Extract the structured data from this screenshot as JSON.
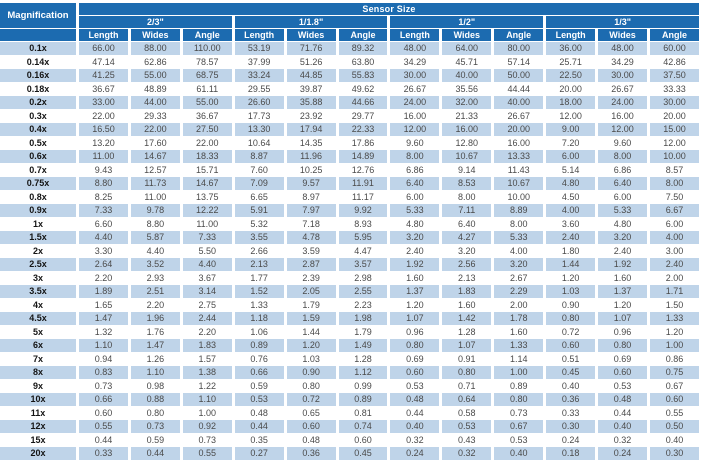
{
  "chart_data": {
    "type": "table",
    "title": "Sensor Size",
    "row_header": "Magnification",
    "column_groups": [
      "2/3\"",
      "1/1.8\"",
      "1/2\"",
      "1/3\""
    ],
    "sub_columns": [
      "Length",
      "Wides",
      "Angle"
    ],
    "rows": [
      {
        "magnification": "0.1x",
        "values": [
          "66.00",
          "88.00",
          "110.00",
          "53.19",
          "71.76",
          "89.32",
          "48.00",
          "64.00",
          "80.00",
          "36.00",
          "48.00",
          "60.00"
        ]
      },
      {
        "magnification": "0.14x",
        "values": [
          "47.14",
          "62.86",
          "78.57",
          "37.99",
          "51.26",
          "63.80",
          "34.29",
          "45.71",
          "57.14",
          "25.71",
          "34.29",
          "42.86"
        ]
      },
      {
        "magnification": "0.16x",
        "values": [
          "41.25",
          "55.00",
          "68.75",
          "33.24",
          "44.85",
          "55.83",
          "30.00",
          "40.00",
          "50.00",
          "22.50",
          "30.00",
          "37.50"
        ]
      },
      {
        "magnification": "0.18x",
        "values": [
          "36.67",
          "48.89",
          "61.11",
          "29.55",
          "39.87",
          "49.62",
          "26.67",
          "35.56",
          "44.44",
          "20.00",
          "26.67",
          "33.33"
        ]
      },
      {
        "magnification": "0.2x",
        "values": [
          "33.00",
          "44.00",
          "55.00",
          "26.60",
          "35.88",
          "44.66",
          "24.00",
          "32.00",
          "40.00",
          "18.00",
          "24.00",
          "30.00"
        ]
      },
      {
        "magnification": "0.3x",
        "values": [
          "22.00",
          "29.33",
          "36.67",
          "17.73",
          "23.92",
          "29.77",
          "16.00",
          "21.33",
          "26.67",
          "12.00",
          "16.00",
          "20.00"
        ]
      },
      {
        "magnification": "0.4x",
        "values": [
          "16.50",
          "22.00",
          "27.50",
          "13.30",
          "17.94",
          "22.33",
          "12.00",
          "16.00",
          "20.00",
          "9.00",
          "12.00",
          "15.00"
        ]
      },
      {
        "magnification": "0.5x",
        "values": [
          "13.20",
          "17.60",
          "22.00",
          "10.64",
          "14.35",
          "17.86",
          "9.60",
          "12.80",
          "16.00",
          "7.20",
          "9.60",
          "12.00"
        ]
      },
      {
        "magnification": "0.6x",
        "values": [
          "11.00",
          "14.67",
          "18.33",
          "8.87",
          "11.96",
          "14.89",
          "8.00",
          "10.67",
          "13.33",
          "6.00",
          "8.00",
          "10.00"
        ]
      },
      {
        "magnification": "0.7x",
        "values": [
          "9.43",
          "12.57",
          "15.71",
          "7.60",
          "10.25",
          "12.76",
          "6.86",
          "9.14",
          "11.43",
          "5.14",
          "6.86",
          "8.57"
        ]
      },
      {
        "magnification": "0.75x",
        "values": [
          "8.80",
          "11.73",
          "14.67",
          "7.09",
          "9.57",
          "11.91",
          "6.40",
          "8.53",
          "10.67",
          "4.80",
          "6.40",
          "8.00"
        ]
      },
      {
        "magnification": "0.8x",
        "values": [
          "8.25",
          "11.00",
          "13.75",
          "6.65",
          "8.97",
          "11.17",
          "6.00",
          "8.00",
          "10.00",
          "4.50",
          "6.00",
          "7.50"
        ]
      },
      {
        "magnification": "0.9x",
        "values": [
          "7.33",
          "9.78",
          "12.22",
          "5.91",
          "7.97",
          "9.92",
          "5.33",
          "7.11",
          "8.89",
          "4.00",
          "5.33",
          "6.67"
        ]
      },
      {
        "magnification": "1x",
        "values": [
          "6.60",
          "8.80",
          "11.00",
          "5.32",
          "7.18",
          "8.93",
          "4.80",
          "6.40",
          "8.00",
          "3.60",
          "4.80",
          "6.00"
        ]
      },
      {
        "magnification": "1.5x",
        "values": [
          "4.40",
          "5.87",
          "7.33",
          "3.55",
          "4.78",
          "5.95",
          "3.20",
          "4.27",
          "5.33",
          "2.40",
          "3.20",
          "4.00"
        ]
      },
      {
        "magnification": "2x",
        "values": [
          "3.30",
          "4.40",
          "5.50",
          "2.66",
          "3.59",
          "4.47",
          "2.40",
          "3.20",
          "4.00",
          "1.80",
          "2.40",
          "3.00"
        ]
      },
      {
        "magnification": "2.5x",
        "values": [
          "2.64",
          "3.52",
          "4.40",
          "2.13",
          "2.87",
          "3.57",
          "1.92",
          "2.56",
          "3.20",
          "1.44",
          "1.92",
          "2.40"
        ]
      },
      {
        "magnification": "3x",
        "values": [
          "2.20",
          "2.93",
          "3.67",
          "1.77",
          "2.39",
          "2.98",
          "1.60",
          "2.13",
          "2.67",
          "1.20",
          "1.60",
          "2.00"
        ]
      },
      {
        "magnification": "3.5x",
        "values": [
          "1.89",
          "2.51",
          "3.14",
          "1.52",
          "2.05",
          "2.55",
          "1.37",
          "1.83",
          "2.29",
          "1.03",
          "1.37",
          "1.71"
        ]
      },
      {
        "magnification": "4x",
        "values": [
          "1.65",
          "2.20",
          "2.75",
          "1.33",
          "1.79",
          "2.23",
          "1.20",
          "1.60",
          "2.00",
          "0.90",
          "1.20",
          "1.50"
        ]
      },
      {
        "magnification": "4.5x",
        "values": [
          "1.47",
          "1.96",
          "2.44",
          "1.18",
          "1.59",
          "1.98",
          "1.07",
          "1.42",
          "1.78",
          "0.80",
          "1.07",
          "1.33"
        ]
      },
      {
        "magnification": "5x",
        "values": [
          "1.32",
          "1.76",
          "2.20",
          "1.06",
          "1.44",
          "1.79",
          "0.96",
          "1.28",
          "1.60",
          "0.72",
          "0.96",
          "1.20"
        ]
      },
      {
        "magnification": "6x",
        "values": [
          "1.10",
          "1.47",
          "1.83",
          "0.89",
          "1.20",
          "1.49",
          "0.80",
          "1.07",
          "1.33",
          "0.60",
          "0.80",
          "1.00"
        ]
      },
      {
        "magnification": "7x",
        "values": [
          "0.94",
          "1.26",
          "1.57",
          "0.76",
          "1.03",
          "1.28",
          "0.69",
          "0.91",
          "1.14",
          "0.51",
          "0.69",
          "0.86"
        ]
      },
      {
        "magnification": "8x",
        "values": [
          "0.83",
          "1.10",
          "1.38",
          "0.66",
          "0.90",
          "1.12",
          "0.60",
          "0.80",
          "1.00",
          "0.45",
          "0.60",
          "0.75"
        ]
      },
      {
        "magnification": "9x",
        "values": [
          "0.73",
          "0.98",
          "1.22",
          "0.59",
          "0.80",
          "0.99",
          "0.53",
          "0.71",
          "0.89",
          "0.40",
          "0.53",
          "0.67"
        ]
      },
      {
        "magnification": "10x",
        "values": [
          "0.66",
          "0.88",
          "1.10",
          "0.53",
          "0.72",
          "0.89",
          "0.48",
          "0.64",
          "0.80",
          "0.36",
          "0.48",
          "0.60"
        ]
      },
      {
        "magnification": "11x",
        "values": [
          "0.60",
          "0.80",
          "1.00",
          "0.48",
          "0.65",
          "0.81",
          "0.44",
          "0.58",
          "0.73",
          "0.33",
          "0.44",
          "0.55"
        ]
      },
      {
        "magnification": "12x",
        "values": [
          "0.55",
          "0.73",
          "0.92",
          "0.44",
          "0.60",
          "0.74",
          "0.40",
          "0.53",
          "0.67",
          "0.30",
          "0.40",
          "0.50"
        ]
      },
      {
        "magnification": "15x",
        "values": [
          "0.44",
          "0.59",
          "0.73",
          "0.35",
          "0.48",
          "0.60",
          "0.32",
          "0.43",
          "0.53",
          "0.24",
          "0.32",
          "0.40"
        ]
      },
      {
        "magnification": "20x",
        "values": [
          "0.33",
          "0.44",
          "0.55",
          "0.27",
          "0.36",
          "0.45",
          "0.24",
          "0.32",
          "0.40",
          "0.18",
          "0.24",
          "0.30"
        ]
      }
    ]
  },
  "colors": {
    "header_blue": "#1C6BB0",
    "row_alt_blue": "#BFD4E9",
    "row_white": "#FFFFFF",
    "text_data": "#4A4A4A",
    "text_label": "#141414"
  }
}
